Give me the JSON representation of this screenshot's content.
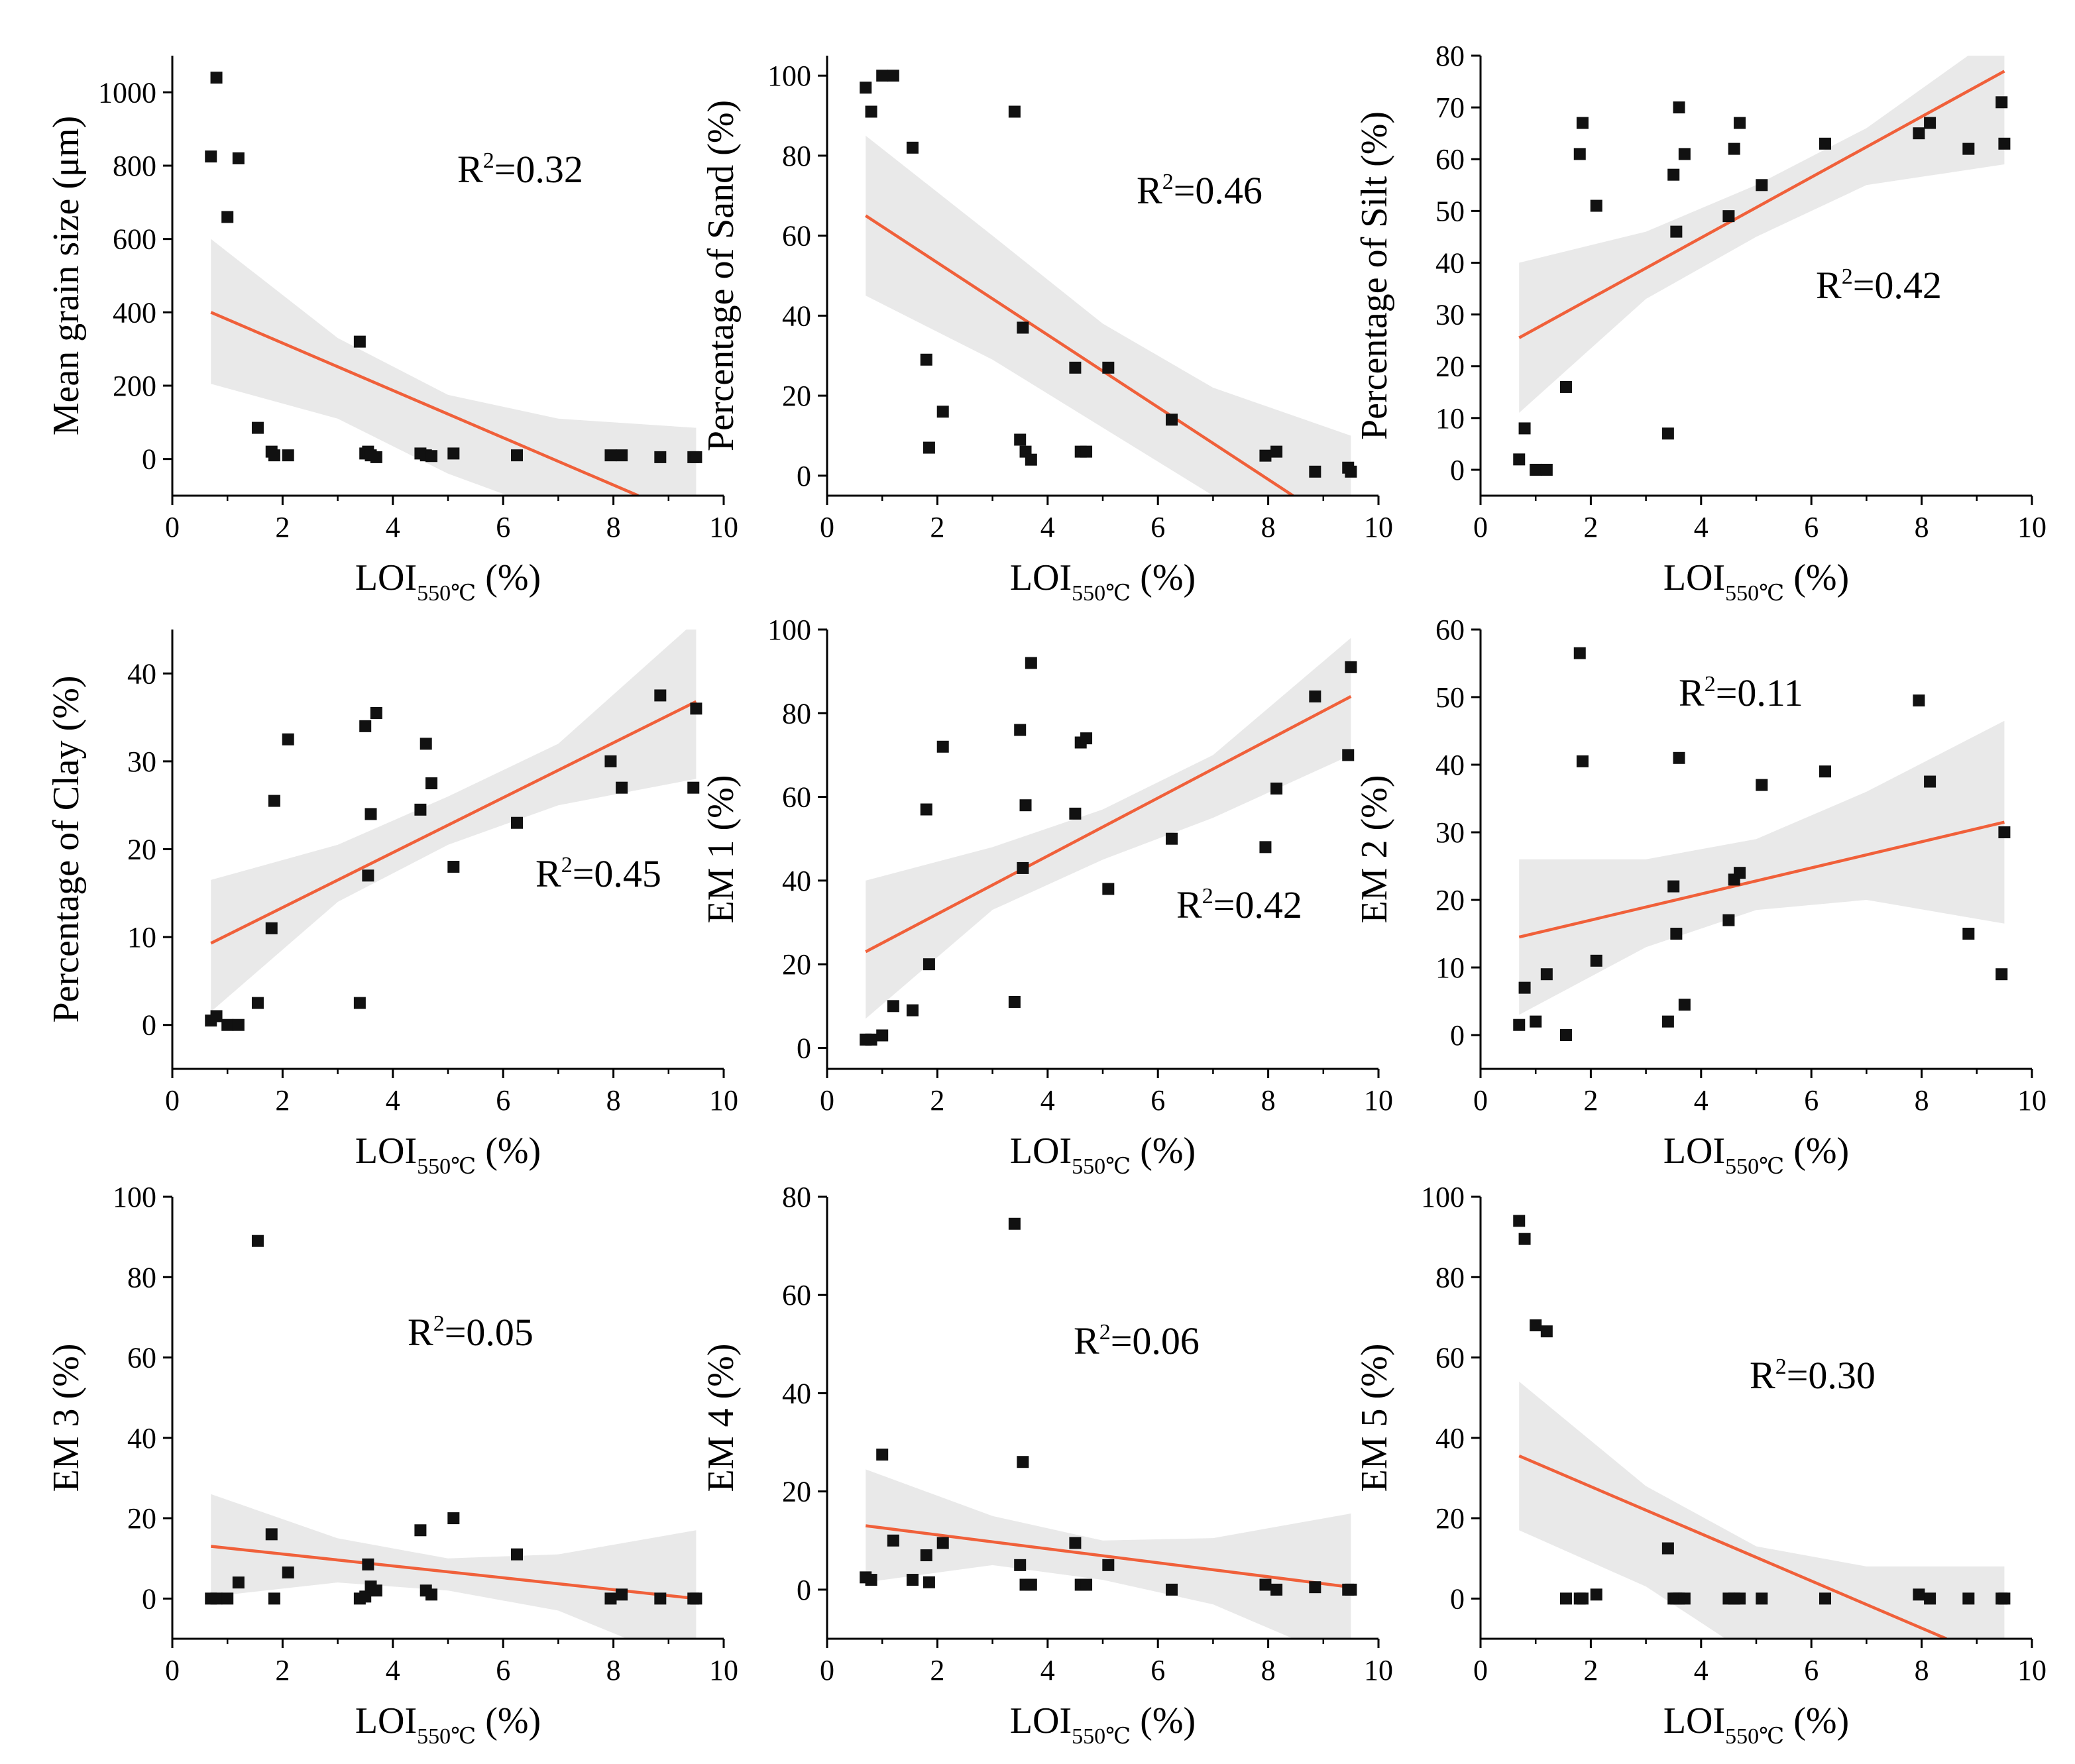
{
  "xlabel_main": "LOI",
  "xlabel_sub": "550℃",
  "xlabel_unit": " (%)",
  "r2_prefix": "R",
  "r2_sup": "2",
  "colors": {
    "points": "#111111",
    "fit": "#f0603a",
    "band": "#e9e9e9"
  },
  "x": [
    0.7,
    0.8,
    1.0,
    1.2,
    1.55,
    1.8,
    1.85,
    2.1,
    3.4,
    3.5,
    3.55,
    3.6,
    3.7,
    4.5,
    4.6,
    4.7,
    5.1,
    6.25,
    7.95,
    8.15,
    8.85,
    9.45,
    9.5
  ],
  "chart_data": [
    {
      "type": "scatter",
      "ylabel": "Mean grain size (μm)",
      "r2": "=0.32",
      "xlim": [
        0,
        10
      ],
      "ylim": [
        -100,
        1100
      ],
      "xticks": [
        "0",
        "2",
        "4",
        "6",
        "8",
        "10"
      ],
      "yticks": [
        "0",
        "200",
        "400",
        "600",
        "800",
        "1000"
      ],
      "y": [
        825,
        1040,
        660,
        820,
        85,
        20,
        10,
        10,
        320,
        15,
        20,
        10,
        5,
        15,
        10,
        8,
        15,
        10,
        10,
        10,
        5,
        5,
        5
      ],
      "fit": [
        [
          0.7,
          400
        ],
        [
          8.45,
          -100
        ]
      ],
      "band_upper": [
        [
          0.7,
          600
        ],
        [
          3,
          330
        ],
        [
          5,
          175
        ],
        [
          7,
          110
        ],
        [
          9.5,
          85
        ]
      ],
      "band_lower": [
        [
          0.7,
          205
        ],
        [
          3,
          110
        ],
        [
          5,
          -40
        ],
        [
          7,
          -150
        ],
        [
          9.5,
          -330
        ]
      ]
    },
    {
      "type": "scatter",
      "ylabel": "Percentage of Sand (%)",
      "r2": "=0.46",
      "xlim": [
        0,
        10
      ],
      "ylim": [
        -5,
        105
      ],
      "xticks": [
        "0",
        "2",
        "4",
        "6",
        "8",
        "10"
      ],
      "yticks": [
        "0",
        "20",
        "40",
        "60",
        "80",
        "100"
      ],
      "y": [
        97,
        91,
        100,
        100,
        82,
        29,
        7,
        16,
        91,
        9,
        37,
        6,
        4,
        27,
        6,
        6,
        27,
        14,
        5,
        6,
        1,
        2,
        1
      ],
      "fit": [
        [
          0.7,
          65
        ],
        [
          8.45,
          -5
        ]
      ],
      "band_upper": [
        [
          0.7,
          85
        ],
        [
          3,
          60
        ],
        [
          5,
          38
        ],
        [
          7,
          22
        ],
        [
          9.5,
          10
        ]
      ],
      "band_lower": [
        [
          0.7,
          45
        ],
        [
          3,
          29
        ],
        [
          5,
          12
        ],
        [
          7,
          -5
        ],
        [
          9.5,
          -25
        ]
      ]
    },
    {
      "type": "scatter",
      "ylabel": "Percentage of Silt (%)",
      "r2": "=0.42",
      "xlim": [
        0,
        10
      ],
      "ylim": [
        -5,
        80
      ],
      "xticks": [
        "0",
        "2",
        "4",
        "6",
        "8",
        "10"
      ],
      "yticks": [
        "0",
        "10",
        "20",
        "30",
        "40",
        "50",
        "60",
        "70",
        "80"
      ],
      "y": [
        2,
        8,
        0,
        0,
        16,
        61,
        67,
        51,
        7,
        57,
        46,
        70,
        61,
        49,
        62,
        67,
        55,
        63,
        65,
        67,
        62,
        71,
        63
      ],
      "fit": [
        [
          0.7,
          25.5
        ],
        [
          9.5,
          77
        ]
      ],
      "band_upper": [
        [
          0.7,
          40
        ],
        [
          3,
          46
        ],
        [
          5,
          55
        ],
        [
          7,
          66
        ],
        [
          9.5,
          85
        ]
      ],
      "band_lower": [
        [
          0.7,
          11
        ],
        [
          3,
          33
        ],
        [
          5,
          45
        ],
        [
          7,
          55
        ],
        [
          9.5,
          59
        ]
      ]
    },
    {
      "type": "scatter",
      "ylabel": "Percentage of Clay (%)",
      "r2": "=0.45",
      "xlim": [
        0,
        10
      ],
      "ylim": [
        -5,
        45
      ],
      "xticks": [
        "0",
        "2",
        "4",
        "6",
        "8",
        "10"
      ],
      "yticks": [
        "0",
        "10",
        "20",
        "30",
        "40"
      ],
      "y": [
        0.5,
        1,
        0,
        0,
        2.5,
        11,
        25.5,
        32.5,
        2.5,
        34,
        17,
        24,
        35.5,
        24.5,
        32,
        27.5,
        18,
        23,
        30,
        27,
        37.5,
        27,
        36
      ],
      "fit": [
        [
          0.7,
          9.3
        ],
        [
          9.5,
          36.8
        ]
      ],
      "band_upper": [
        [
          0.7,
          16.5
        ],
        [
          3,
          20.5
        ],
        [
          5,
          26
        ],
        [
          7,
          32
        ],
        [
          9.5,
          46
        ]
      ],
      "band_lower": [
        [
          0.7,
          1.5
        ],
        [
          3,
          14
        ],
        [
          5,
          20.5
        ],
        [
          7,
          25
        ],
        [
          9.5,
          28
        ]
      ]
    },
    {
      "type": "scatter",
      "ylabel": "EM 1 (%)",
      "r2": "=0.42",
      "xlim": [
        0,
        10
      ],
      "ylim": [
        -5,
        100
      ],
      "xticks": [
        "0",
        "2",
        "4",
        "6",
        "8",
        "10"
      ],
      "yticks": [
        "0",
        "20",
        "40",
        "60",
        "80",
        "100"
      ],
      "y": [
        2,
        2,
        3,
        10,
        9,
        57,
        20,
        72,
        11,
        76,
        43,
        58,
        92,
        56,
        73,
        74,
        38,
        50,
        48,
        62,
        84,
        70,
        91
      ],
      "fit": [
        [
          0.7,
          23
        ],
        [
          9.5,
          84
        ]
      ],
      "band_upper": [
        [
          0.7,
          40
        ],
        [
          3,
          48
        ],
        [
          5,
          57
        ],
        [
          7,
          70
        ],
        [
          9.5,
          98
        ]
      ],
      "band_lower": [
        [
          0.7,
          7
        ],
        [
          3,
          33
        ],
        [
          5,
          45
        ],
        [
          7,
          55
        ],
        [
          9.5,
          70
        ]
      ]
    },
    {
      "type": "scatter",
      "ylabel": "EM 2 (%)",
      "r2": "=0.11",
      "xlim": [
        0,
        10
      ],
      "ylim": [
        -5,
        60
      ],
      "xticks": [
        "0",
        "2",
        "4",
        "6",
        "8",
        "10"
      ],
      "yticks": [
        "0",
        "10",
        "20",
        "30",
        "40",
        "50",
        "60"
      ],
      "y": [
        1.5,
        7,
        2,
        9,
        0,
        56.5,
        40.5,
        11,
        2,
        22,
        15,
        41,
        4.5,
        17,
        23,
        24,
        37,
        39,
        49.5,
        37.5,
        15,
        9,
        30
      ],
      "fit": [
        [
          0.7,
          14.5
        ],
        [
          9.5,
          31.5
        ]
      ],
      "band_upper": [
        [
          0.7,
          26
        ],
        [
          3,
          26
        ],
        [
          5,
          29
        ],
        [
          7,
          36
        ],
        [
          9.5,
          46.5
        ]
      ],
      "band_lower": [
        [
          0.7,
          3
        ],
        [
          3,
          13
        ],
        [
          5,
          18.5
        ],
        [
          7,
          20
        ],
        [
          9.5,
          16.5
        ]
      ]
    },
    {
      "type": "scatter",
      "ylabel": "EM 3 (%)",
      "r2": "=0.05",
      "xlim": [
        0,
        10
      ],
      "ylim": [
        -10,
        100
      ],
      "xticks": [
        "0",
        "2",
        "4",
        "6",
        "8",
        "10"
      ],
      "yticks": [
        "0",
        "20",
        "40",
        "60",
        "80",
        "100"
      ],
      "y": [
        0,
        0,
        0,
        4,
        89,
        16,
        0,
        6.5,
        0,
        0.5,
        8.5,
        3,
        2,
        17,
        2,
        1,
        20,
        11,
        0,
        1,
        0,
        0,
        0
      ],
      "fit": [
        [
          0.7,
          13
        ],
        [
          9.5,
          0
        ]
      ],
      "band_upper": [
        [
          0.7,
          26
        ],
        [
          3,
          15
        ],
        [
          5,
          10
        ],
        [
          7,
          11
        ],
        [
          9.5,
          17
        ]
      ],
      "band_lower": [
        [
          0.7,
          0.5
        ],
        [
          3,
          4
        ],
        [
          5,
          2
        ],
        [
          7,
          -3
        ],
        [
          9.5,
          -17
        ]
      ]
    },
    {
      "type": "scatter",
      "ylabel": "EM 4 (%)",
      "r2": "=0.06",
      "xlim": [
        0,
        10
      ],
      "ylim": [
        -10,
        80
      ],
      "xticks": [
        "0",
        "2",
        "4",
        "6",
        "8",
        "10"
      ],
      "yticks": [
        "0",
        "20",
        "40",
        "60",
        "80"
      ],
      "y": [
        2.5,
        2,
        27.5,
        10,
        2,
        7,
        1.5,
        9.5,
        74.5,
        5,
        26,
        1,
        1,
        9.5,
        1,
        1,
        5,
        0,
        1,
        0,
        0.5,
        0,
        0
      ],
      "fit": [
        [
          0.7,
          13
        ],
        [
          9.5,
          0.5
        ]
      ],
      "band_upper": [
        [
          0.7,
          24.5
        ],
        [
          3,
          15
        ],
        [
          5,
          10
        ],
        [
          7,
          10.5
        ],
        [
          9.5,
          15.5
        ]
      ],
      "band_lower": [
        [
          0.7,
          1.5
        ],
        [
          3,
          5
        ],
        [
          5,
          2
        ],
        [
          7,
          -3
        ],
        [
          9.5,
          -15
        ]
      ]
    },
    {
      "type": "scatter",
      "ylabel": "EM 5 (%)",
      "r2": "=0.30",
      "xlim": [
        0,
        10
      ],
      "ylim": [
        -10,
        100
      ],
      "xticks": [
        "0",
        "2",
        "4",
        "6",
        "8",
        "10"
      ],
      "yticks": [
        "0",
        "20",
        "40",
        "60",
        "80",
        "100"
      ],
      "y": [
        94,
        89.5,
        68,
        66.5,
        0,
        0,
        0,
        1,
        12.5,
        0,
        0,
        0,
        0,
        0,
        0,
        0,
        0,
        0,
        1,
        0,
        0,
        0,
        0
      ],
      "fit": [
        [
          0.7,
          35.5
        ],
        [
          8.45,
          -10
        ]
      ],
      "band_upper": [
        [
          0.7,
          54
        ],
        [
          3,
          28
        ],
        [
          5,
          13
        ],
        [
          7,
          8
        ],
        [
          9.5,
          8
        ]
      ],
      "band_lower": [
        [
          0.7,
          17
        ],
        [
          3,
          3
        ],
        [
          5,
          -15
        ],
        [
          7,
          -30
        ],
        [
          9.5,
          -50
        ]
      ]
    }
  ]
}
